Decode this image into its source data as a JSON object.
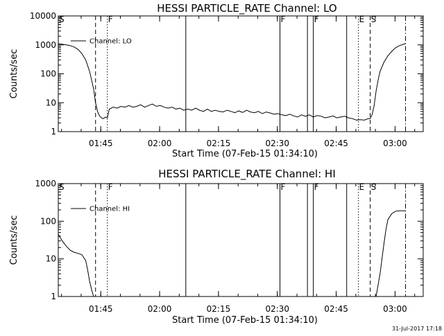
{
  "datestamp": "31-Jul-2017 17:18",
  "chart_data": [
    {
      "type": "line",
      "title": "HESSI PARTICLE_RATE Channel: LO",
      "xlabel": "Start Time (07-Feb-15 01:34:10)",
      "ylabel": "Counts/sec",
      "y_scale": "log",
      "ylim": [
        1,
        10000
      ],
      "xlim_minutes": [
        0,
        93
      ],
      "x_ticks": [
        {
          "label": "01:45",
          "minute": 10.83
        },
        {
          "label": "02:00",
          "minute": 25.83
        },
        {
          "label": "02:15",
          "minute": 40.83
        },
        {
          "label": "02:30",
          "minute": 55.83
        },
        {
          "label": "02:45",
          "minute": 70.83
        },
        {
          "label": "03:00",
          "minute": 85.83
        }
      ],
      "y_ticks": [
        {
          "label": "1",
          "value": 1
        },
        {
          "label": "10",
          "value": 10
        },
        {
          "label": "100",
          "value": 100
        },
        {
          "label": "1000",
          "value": 1000
        },
        {
          "label": "10000",
          "value": 10000
        }
      ],
      "legend": {
        "placement": "top-left",
        "entries": [
          "Channel: LO"
        ]
      },
      "event_markers": [
        {
          "minute": 0.0,
          "style": "solid",
          "label": "S"
        },
        {
          "minute": 9.5,
          "style": "dashed",
          "label": ""
        },
        {
          "minute": 12.5,
          "style": "dotted",
          "label": "F"
        },
        {
          "minute": 32.5,
          "style": "solid",
          "label": ""
        },
        {
          "minute": 56.5,
          "style": "solid",
          "label": "F"
        },
        {
          "minute": 63.5,
          "style": "solid",
          "label": ""
        },
        {
          "minute": 65.0,
          "style": "solid",
          "label": "F"
        },
        {
          "minute": 73.5,
          "style": "solid",
          "label": ""
        },
        {
          "minute": 76.5,
          "style": "dotted",
          "label": "E"
        },
        {
          "minute": 79.5,
          "style": "dashed",
          "label": "S"
        },
        {
          "minute": 88.5,
          "style": "dashdot",
          "label": ""
        }
      ],
      "series": [
        {
          "name": "Channel: LO",
          "x_minutes": [
            0,
            1,
            2,
            3,
            4,
            5,
            6,
            7,
            8,
            9,
            9.5,
            10,
            10.5,
            11,
            11.5,
            12,
            12.5,
            13,
            14,
            15,
            16,
            17,
            18,
            19,
            20,
            21,
            22,
            23,
            24,
            25,
            26,
            27,
            28,
            29,
            30,
            31,
            32,
            33,
            34,
            35,
            36,
            37,
            38,
            39,
            40,
            41,
            42,
            43,
            44,
            45,
            46,
            47,
            48,
            49,
            50,
            51,
            52,
            53,
            54,
            55,
            56,
            57,
            58,
            59,
            60,
            61,
            62,
            63,
            64,
            65,
            66,
            67,
            68,
            69,
            70,
            71,
            72,
            73,
            74,
            75,
            76,
            77,
            78,
            79,
            79.5,
            80,
            80.5,
            81,
            81.5,
            82,
            83,
            84,
            85,
            86,
            87,
            88,
            88.5
          ],
          "y": [
            1100,
            1050,
            1000,
            950,
            850,
            700,
            500,
            300,
            120,
            30,
            10,
            5,
            3.5,
            3,
            2.8,
            3.2,
            3,
            6,
            7,
            6.5,
            7.5,
            7,
            8,
            7,
            7.5,
            8.5,
            7,
            8,
            9,
            7.5,
            8,
            7,
            6.5,
            7,
            6,
            6.5,
            5.5,
            6,
            5.5,
            6.5,
            5.5,
            5,
            6,
            5,
            5.5,
            5,
            4.8,
            5.5,
            5,
            4.5,
            5.2,
            4.6,
            5.5,
            4.8,
            4.5,
            5,
            4.2,
            4.8,
            4.4,
            4,
            4.2,
            3.8,
            3.6,
            4,
            3.5,
            3.2,
            3.8,
            3.4,
            3.8,
            3.2,
            3.6,
            3.4,
            3,
            3.2,
            3.5,
            3,
            3.2,
            3.4,
            3,
            2.8,
            2.5,
            2.6,
            2.5,
            2.8,
            2.8,
            4,
            8,
            25,
            60,
            120,
            250,
            420,
            600,
            800,
            950,
            1050,
            1100
          ]
        }
      ]
    },
    {
      "type": "line",
      "title": "HESSI PARTICLE_RATE Channel: HI",
      "xlabel": "Start Time (07-Feb-15 01:34:10)",
      "ylabel": "Counts/sec",
      "y_scale": "log",
      "ylim": [
        1,
        1000
      ],
      "xlim_minutes": [
        0,
        93
      ],
      "x_ticks": [
        {
          "label": "01:45",
          "minute": 10.83
        },
        {
          "label": "02:00",
          "minute": 25.83
        },
        {
          "label": "02:15",
          "minute": 40.83
        },
        {
          "label": "02:30",
          "minute": 55.83
        },
        {
          "label": "02:45",
          "minute": 70.83
        },
        {
          "label": "03:00",
          "minute": 85.83
        }
      ],
      "y_ticks": [
        {
          "label": "1",
          "value": 1
        },
        {
          "label": "10",
          "value": 10
        },
        {
          "label": "100",
          "value": 100
        },
        {
          "label": "1000",
          "value": 1000
        }
      ],
      "legend": {
        "placement": "top-left",
        "entries": [
          "Channel: HI"
        ]
      },
      "event_markers": [
        {
          "minute": 0.0,
          "style": "solid",
          "label": "S"
        },
        {
          "minute": 9.5,
          "style": "dashed",
          "label": ""
        },
        {
          "minute": 12.5,
          "style": "dotted",
          "label": "F"
        },
        {
          "minute": 32.5,
          "style": "solid",
          "label": ""
        },
        {
          "minute": 56.5,
          "style": "solid",
          "label": "F"
        },
        {
          "minute": 63.5,
          "style": "solid",
          "label": ""
        },
        {
          "minute": 65.0,
          "style": "solid",
          "label": "F"
        },
        {
          "minute": 73.5,
          "style": "solid",
          "label": ""
        },
        {
          "minute": 76.5,
          "style": "dotted",
          "label": "E"
        },
        {
          "minute": 79.5,
          "style": "dashed",
          "label": "S"
        },
        {
          "minute": 88.5,
          "style": "dashdot",
          "label": ""
        }
      ],
      "series": [
        {
          "name": "Channel: HI",
          "x_minutes": [
            0,
            1,
            2,
            3,
            4,
            5,
            6,
            7,
            7.5,
            8,
            8.5,
            9,
            null,
            81,
            82,
            82.5,
            83,
            83.5,
            84,
            85,
            86,
            87,
            88,
            88.5
          ],
          "y": [
            45,
            30,
            22,
            17,
            15,
            14,
            13,
            9,
            5,
            2.5,
            1.5,
            1,
            null,
            1,
            4,
            10,
            25,
            60,
            110,
            160,
            185,
            190,
            190,
            190
          ]
        }
      ]
    }
  ]
}
